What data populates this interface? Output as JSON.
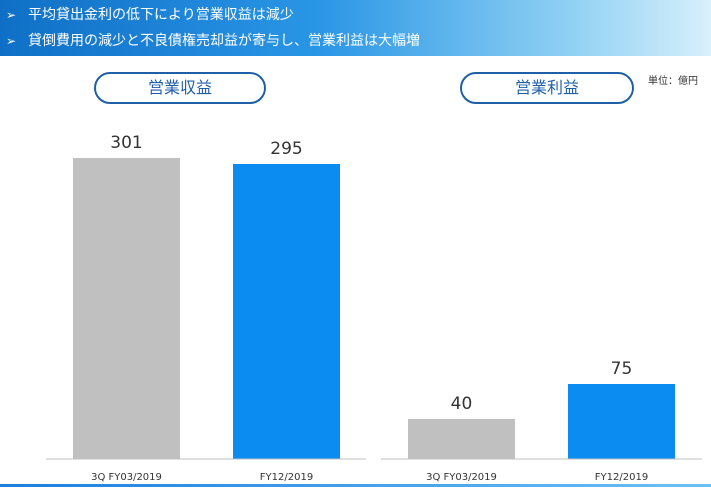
{
  "header": {
    "bullets": [
      "平均貸出金利の低下により営業収益は減少",
      "貸倒費用の減少と不良債権売却益が寄与し、営業利益は大幅増"
    ],
    "bullet_marker": "➢"
  },
  "unit_label": "単位：億円",
  "chart_data": [
    {
      "type": "bar",
      "title": "営業収益",
      "categories": [
        "3Q FY03/2019",
        "FY12/2019"
      ],
      "values": [
        301,
        295
      ],
      "colors": [
        "#c0c0c0",
        "#0a8cf0"
      ],
      "ylim": [
        0,
        301
      ]
    },
    {
      "type": "bar",
      "title": "営業利益",
      "categories": [
        "3Q FY03/2019",
        "FY12/2019"
      ],
      "values": [
        40,
        75
      ],
      "colors": [
        "#c0c0c0",
        "#0a8cf0"
      ],
      "ylim": [
        0,
        301
      ]
    }
  ]
}
